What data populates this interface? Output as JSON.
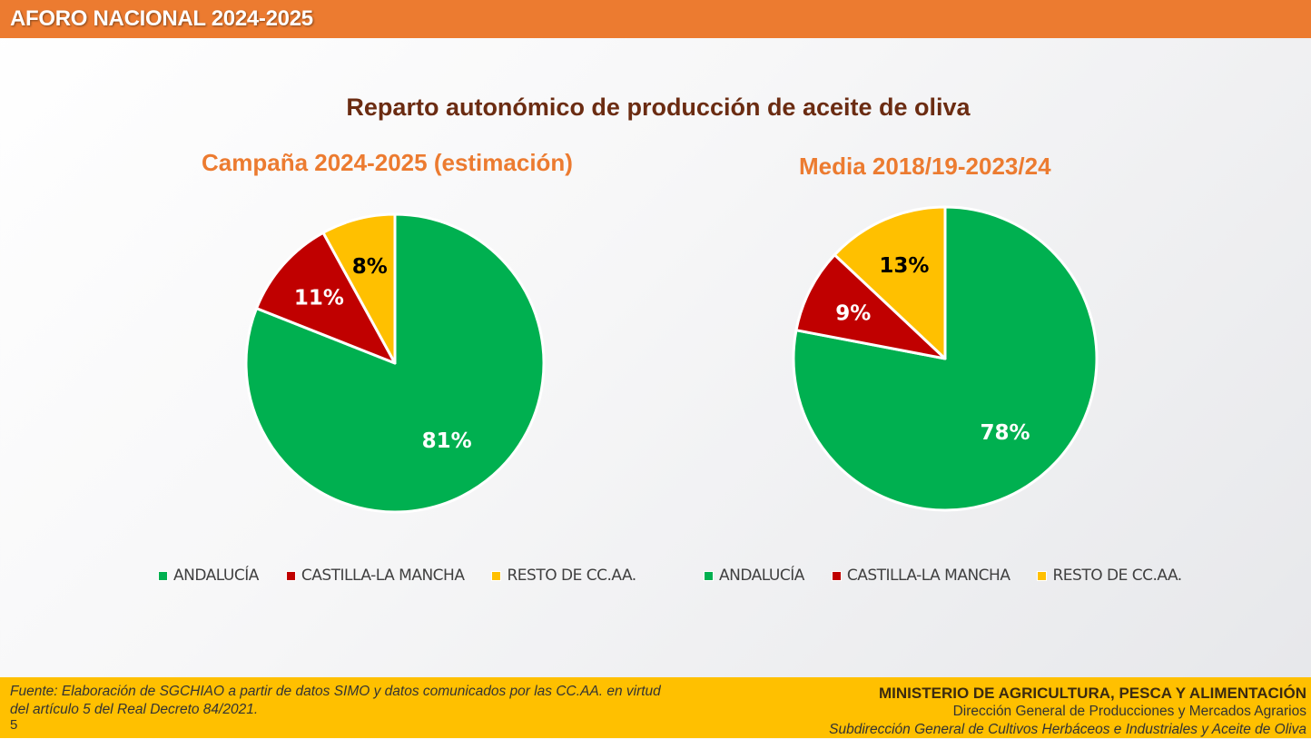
{
  "header": {
    "title": "AFORO NACIONAL 2024-2025"
  },
  "main_title": "Reparto autonómico de producción de aceite de oliva",
  "colors": {
    "andalucia": "#00b050",
    "castilla": "#c00000",
    "resto": "#ffc000",
    "header": "#ec7b30",
    "footer": "#ffc000"
  },
  "chart_data": [
    {
      "type": "pie",
      "title": "Campaña 2024-2025 (estimación)",
      "categories": [
        "ANDALUCÍA",
        "CASTILLA-LA MANCHA",
        "RESTO DE CC.AA."
      ],
      "values": [
        81,
        11,
        8
      ],
      "labels": [
        "81%",
        "11%",
        "8%"
      ],
      "legend": "bottom"
    },
    {
      "type": "pie",
      "title": "Media 2018/19-2023/24",
      "categories": [
        "ANDALUCÍA",
        "CASTILLA-LA MANCHA",
        "RESTO DE CC.AA."
      ],
      "values": [
        78,
        9,
        13
      ],
      "labels": [
        "78%",
        "9%",
        "13%"
      ],
      "legend": "bottom"
    }
  ],
  "footer": {
    "source_line1": "Fuente: Elaboración de SGCHIAO a partir de datos SIMO y datos comunicados por las CC.AA. en virtud",
    "source_line2": "del artículo 5 del Real Decreto 84/2021.",
    "page_number": "5",
    "ministry": "MINISTERIO DE AGRICULTURA, PESCA Y ALIMENTACIÓN",
    "direccion": "Dirección General de Producciones y Mercados Agrarios",
    "subdireccion": "Subdirección General de Cultivos Herbáceos e Industriales y Aceite de Oliva"
  }
}
